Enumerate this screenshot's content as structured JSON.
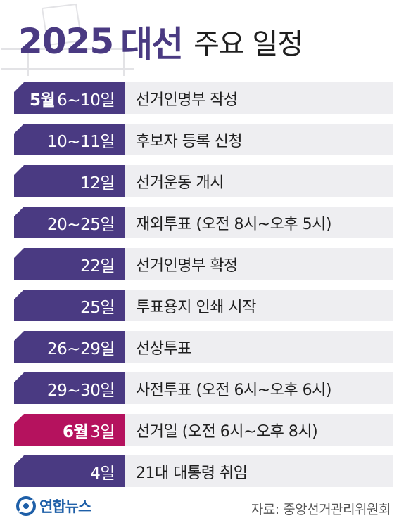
{
  "header": {
    "year": "2025",
    "word": "대선",
    "subtitle": "주요 일정"
  },
  "colors": {
    "accent": "#4a3a82",
    "highlight": "#b5125e",
    "row_background": "#eeeef1"
  },
  "schedule": [
    {
      "month": "5월",
      "days": "6~10일",
      "event": "선거인명부 작성",
      "highlight": false
    },
    {
      "month": "",
      "days": "10~11일",
      "event": "후보자 등록 신청",
      "highlight": false
    },
    {
      "month": "",
      "days": "12일",
      "event": "선거운동 개시",
      "highlight": false
    },
    {
      "month": "",
      "days": "20~25일",
      "event": "재외투표 (오전 8시~오후 5시)",
      "highlight": false
    },
    {
      "month": "",
      "days": "22일",
      "event": "선거인명부 확정",
      "highlight": false
    },
    {
      "month": "",
      "days": "25일",
      "event": "투표용지 인쇄 시작",
      "highlight": false
    },
    {
      "month": "",
      "days": "26~29일",
      "event": "선상투표",
      "highlight": false
    },
    {
      "month": "",
      "days": "29~30일",
      "event": "사전투표 (오전 6시~오후 6시)",
      "highlight": false
    },
    {
      "month": "6월",
      "days": "3일",
      "event": "선거일 (오전 6시~오후 8시)",
      "highlight": true
    },
    {
      "month": "",
      "days": "4일",
      "event": "21대 대통령 취임",
      "highlight": false
    }
  ],
  "footer": {
    "logo_icon": "yonhap-logo-icon",
    "logo_text": "연합뉴스",
    "source": "자료: 중앙선거관리위원회"
  }
}
